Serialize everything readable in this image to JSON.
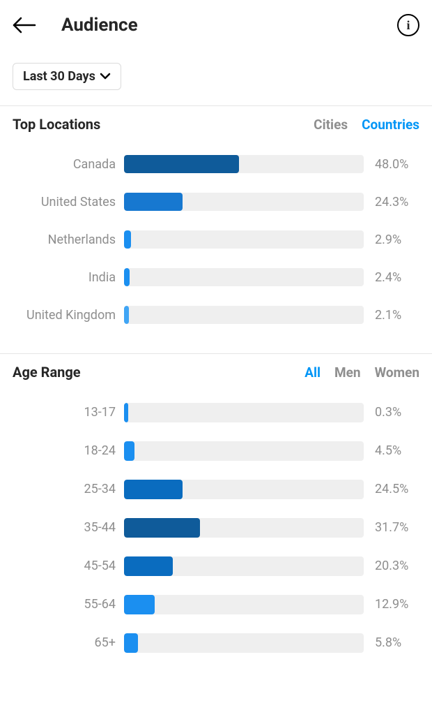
{
  "header": {
    "title": "Audience"
  },
  "date_filter": {
    "label": "Last 30 Days"
  },
  "locations_section": {
    "title": "Top Locations",
    "tabs": {
      "cities": "Cities",
      "countries": "Countries"
    },
    "active_tab": "countries",
    "chart": {
      "type": "bar",
      "track_color": "#efefef",
      "items": [
        {
          "label": "Canada",
          "value": 48.0,
          "display": "48.0%",
          "color": "#0f5b9a"
        },
        {
          "label": "United States",
          "value": 24.3,
          "display": "24.3%",
          "color": "#1778d0"
        },
        {
          "label": "Netherlands",
          "value": 2.9,
          "display": "2.9%",
          "color": "#1b8ff0"
        },
        {
          "label": "India",
          "value": 2.4,
          "display": "2.4%",
          "color": "#1b8ff0"
        },
        {
          "label": "United Kingdom",
          "value": 2.1,
          "display": "2.1%",
          "color": "#40a5f5"
        }
      ]
    }
  },
  "age_section": {
    "title": "Age Range",
    "tabs": {
      "all": "All",
      "men": "Men",
      "women": "Women"
    },
    "active_tab": "all",
    "chart": {
      "type": "bar",
      "track_color": "#efefef",
      "items": [
        {
          "label": "13-17",
          "value": 0.3,
          "display": "0.3%",
          "color": "#1b8ff0"
        },
        {
          "label": "18-24",
          "value": 4.5,
          "display": "4.5%",
          "color": "#1b8ff0"
        },
        {
          "label": "25-34",
          "value": 24.5,
          "display": "24.5%",
          "color": "#0a6cbf"
        },
        {
          "label": "35-44",
          "value": 31.7,
          "display": "31.7%",
          "color": "#0f5b9a"
        },
        {
          "label": "45-54",
          "value": 20.3,
          "display": "20.3%",
          "color": "#0a6cbf"
        },
        {
          "label": "55-64",
          "value": 12.9,
          "display": "12.9%",
          "color": "#1b8ff0"
        },
        {
          "label": "65+",
          "value": 5.8,
          "display": "5.8%",
          "color": "#1b8ff0"
        }
      ]
    }
  },
  "colors": {
    "text_primary": "#262626",
    "text_secondary": "#8e8e8e",
    "accent": "#0095f6",
    "divider": "#e6e6e6",
    "background": "#ffffff"
  }
}
